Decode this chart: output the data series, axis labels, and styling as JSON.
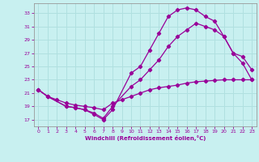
{
  "background_color": "#c8f0f0",
  "grid_color": "#b0e0e0",
  "line_color": "#990099",
  "line_width": 0.9,
  "marker": "D",
  "marker_size": 2.2,
  "xlabel": "Windchill (Refroidissement éolien,°C)",
  "xlim": [
    -0.5,
    23.5
  ],
  "ylim": [
    16.0,
    34.5
  ],
  "yticks": [
    17,
    19,
    21,
    23,
    25,
    27,
    29,
    31,
    33
  ],
  "xticks": [
    0,
    1,
    2,
    3,
    4,
    5,
    6,
    7,
    8,
    9,
    10,
    11,
    12,
    13,
    14,
    15,
    16,
    17,
    18,
    19,
    20,
    21,
    22,
    23
  ],
  "series1_x": [
    0,
    1,
    3,
    4,
    5,
    6,
    7,
    8,
    10,
    11,
    12,
    13,
    14,
    15,
    16,
    17,
    18,
    19,
    20,
    21,
    22,
    23
  ],
  "series1_y": [
    21.5,
    20.5,
    19.0,
    18.8,
    18.5,
    17.8,
    17.0,
    18.5,
    24.0,
    25.0,
    27.5,
    30.0,
    32.5,
    33.5,
    33.8,
    33.5,
    32.5,
    31.8,
    29.5,
    27.0,
    26.5,
    24.5
  ],
  "series2_x": [
    0,
    1,
    3,
    4,
    5,
    6,
    7,
    8,
    10,
    11,
    12,
    13,
    14,
    15,
    16,
    17,
    18,
    19,
    20,
    21,
    22,
    23
  ],
  "series2_y": [
    21.5,
    20.5,
    19.0,
    18.8,
    18.5,
    18.0,
    17.2,
    19.0,
    22.0,
    23.0,
    24.5,
    26.0,
    28.0,
    29.5,
    30.5,
    31.5,
    31.0,
    30.5,
    29.5,
    27.0,
    25.5,
    23.0
  ],
  "series3_x": [
    0,
    1,
    2,
    3,
    4,
    5,
    6,
    7,
    8,
    9,
    10,
    11,
    12,
    13,
    14,
    15,
    16,
    17,
    18,
    19,
    20,
    21,
    22,
    23
  ],
  "series3_y": [
    21.5,
    20.5,
    20.0,
    19.5,
    19.2,
    19.0,
    18.8,
    18.5,
    19.5,
    20.0,
    20.5,
    21.0,
    21.5,
    21.8,
    22.0,
    22.2,
    22.5,
    22.7,
    22.8,
    22.9,
    23.0,
    23.0,
    23.0,
    23.0
  ]
}
